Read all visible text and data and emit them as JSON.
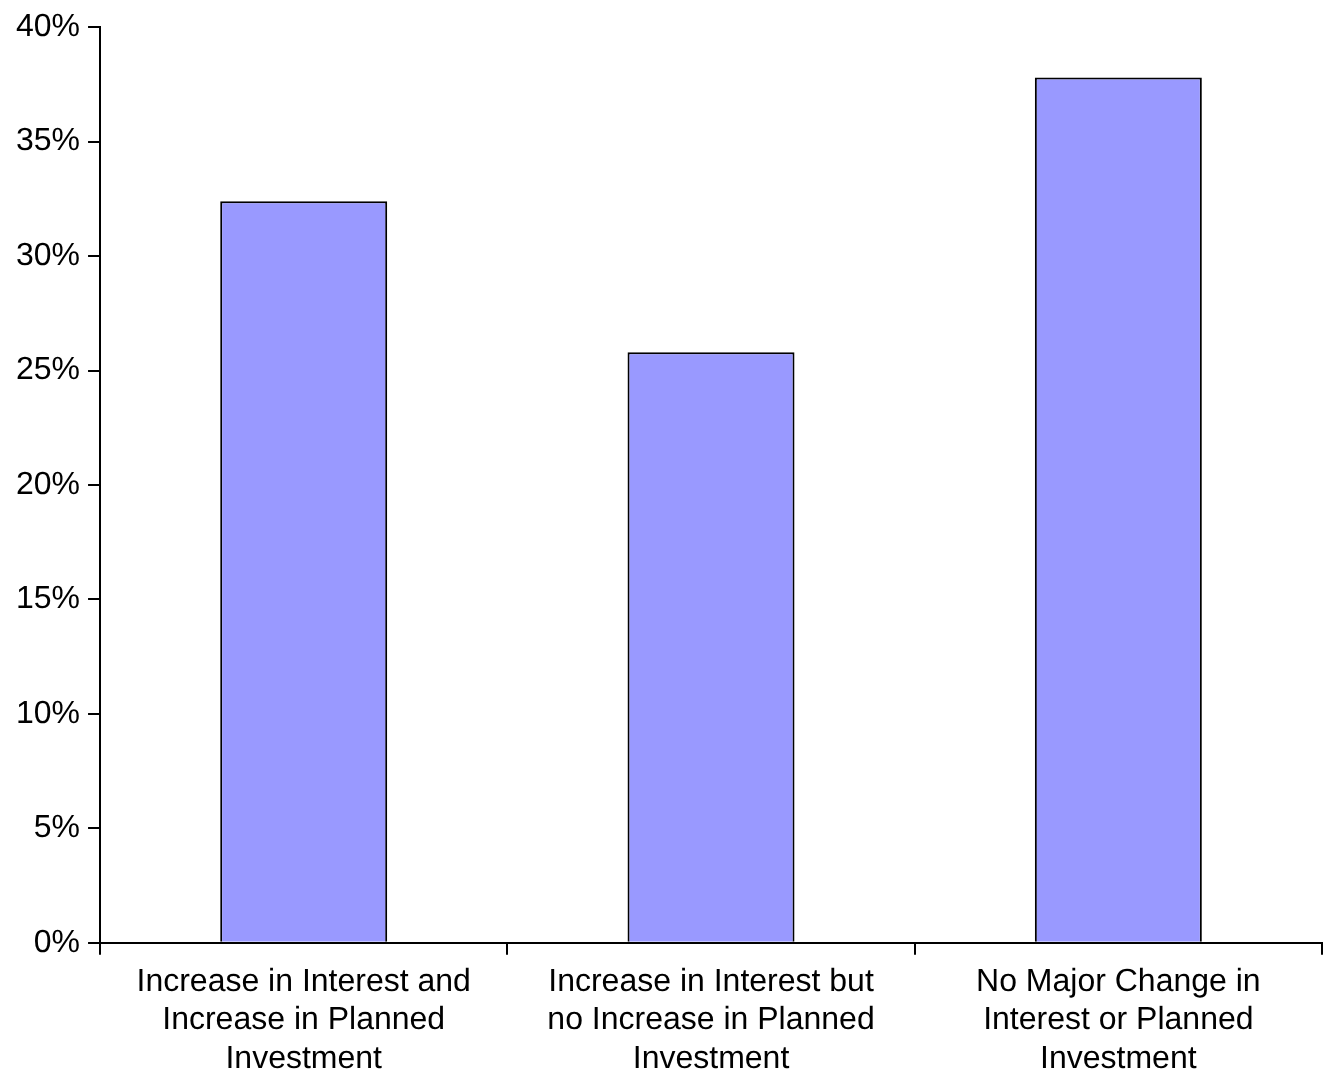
{
  "chart_data": {
    "type": "bar",
    "categories": [
      "Increase in Interest and Increase in Planned Investment",
      "Increase in Interest but no Increase in Planned Investment",
      "No Major Change in Interest or Planned Investment"
    ],
    "values": [
      32.4,
      25.8,
      37.8
    ],
    "color": "#9999ff",
    "ylim": [
      0,
      40
    ],
    "yticks": [
      {
        "value": 0,
        "label": "0%"
      },
      {
        "value": 5,
        "label": "5%"
      },
      {
        "value": 10,
        "label": "10%"
      },
      {
        "value": 15,
        "label": "15%"
      },
      {
        "value": 20,
        "label": "20%"
      },
      {
        "value": 25,
        "label": "25%"
      },
      {
        "value": 30,
        "label": "30%"
      },
      {
        "value": 35,
        "label": "35%"
      },
      {
        "value": 40,
        "label": "40%"
      }
    ],
    "grid": false,
    "legend": false
  }
}
